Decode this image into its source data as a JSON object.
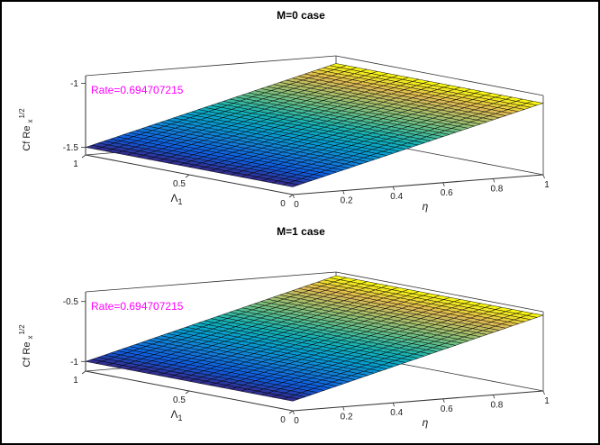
{
  "figure": {
    "background": "#ffffff",
    "border_color": "#000000"
  },
  "chart_data": [
    {
      "type": "surface",
      "title": "M=0 case",
      "xlabel": "η",
      "ylabel": "Λ_1",
      "ylabel_parts": {
        "main": "Λ",
        "sub": "1"
      },
      "zlabel": "Cf Re_x^(1/2)",
      "zlabel_parts": {
        "main": "Cf Re",
        "sub": "x",
        "sup": "1/2"
      },
      "annotation": {
        "text": "Rate=0.694707215",
        "color": "#ff00ff"
      },
      "xlim": [
        0,
        1
      ],
      "ylim": [
        0,
        1
      ],
      "zlim": [
        -1.56,
        -0.94
      ],
      "x_ticks": [
        0,
        0.2,
        0.4,
        0.6,
        0.8,
        1
      ],
      "y_ticks": [
        1,
        0.5,
        0
      ],
      "z_ticks": [
        -1,
        -1.5
      ],
      "colormap": "parula",
      "mesh_line_color": "#000000",
      "surface": {
        "eta": [
          0,
          0.25,
          0.5,
          0.75,
          1
        ],
        "lambda": [
          0,
          0.5,
          1
        ],
        "z": [
          [
            -1.5,
            -1.375,
            -1.25,
            -1.125,
            -1.0
          ],
          [
            -1.5,
            -1.375,
            -1.25,
            -1.125,
            -1.0
          ],
          [
            -1.5,
            -1.375,
            -1.25,
            -1.125,
            -1.0
          ]
        ]
      }
    },
    {
      "type": "surface",
      "title": "M=1 case",
      "xlabel": "η",
      "ylabel": "Λ_1",
      "ylabel_parts": {
        "main": "Λ",
        "sub": "1"
      },
      "zlabel": "Cf Re_x^(1/2)",
      "zlabel_parts": {
        "main": "Cf Re",
        "sub": "x",
        "sup": "1/2"
      },
      "annotation": {
        "text": "Rate=0.694707215",
        "color": "#ff00ff"
      },
      "xlim": [
        0,
        1
      ],
      "ylim": [
        0,
        1
      ],
      "zlim": [
        -1.08,
        -0.42
      ],
      "x_ticks": [
        0,
        0.2,
        0.4,
        0.6,
        0.8,
        1
      ],
      "y_ticks": [
        1,
        0.5,
        0
      ],
      "z_ticks": [
        -0.5,
        -1
      ],
      "colormap": "parula",
      "mesh_line_color": "#000000",
      "surface": {
        "eta": [
          0,
          0.25,
          0.5,
          0.75,
          1
        ],
        "lambda": [
          0,
          0.5,
          1
        ],
        "z": [
          [
            -1.0,
            -0.8625,
            -0.725,
            -0.5875,
            -0.45
          ],
          [
            -1.0,
            -0.8625,
            -0.725,
            -0.5875,
            -0.45
          ],
          [
            -1.0,
            -0.8625,
            -0.725,
            -0.5875,
            -0.45
          ]
        ]
      }
    }
  ]
}
